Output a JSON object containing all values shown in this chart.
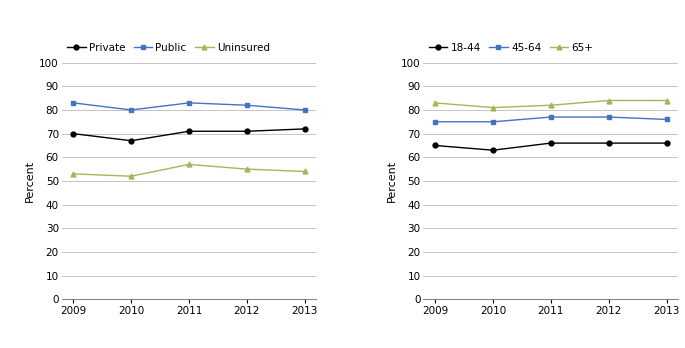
{
  "years": [
    2009,
    2010,
    2011,
    2012,
    2013
  ],
  "chart1": {
    "private": [
      70,
      67,
      71,
      71,
      72
    ],
    "public": [
      83,
      80,
      83,
      82,
      80
    ],
    "uninsured": [
      53,
      52,
      57,
      55,
      54
    ]
  },
  "chart2": {
    "age_18_44": [
      65,
      63,
      66,
      66,
      66
    ],
    "age_45_64": [
      75,
      75,
      77,
      77,
      76
    ],
    "age_65plus": [
      83,
      81,
      82,
      84,
      84
    ]
  },
  "colors": {
    "black": "#000000",
    "blue": "#4472C4",
    "olive": "#9BBB59"
  },
  "ylabel": "Percent",
  "ylim": [
    0,
    100
  ],
  "yticks": [
    0,
    10,
    20,
    30,
    40,
    50,
    60,
    70,
    80,
    90,
    100
  ],
  "legend1": [
    "Private",
    "Public",
    "Uninsured"
  ],
  "legend2": [
    "18-44",
    "45-64",
    "65+"
  ]
}
